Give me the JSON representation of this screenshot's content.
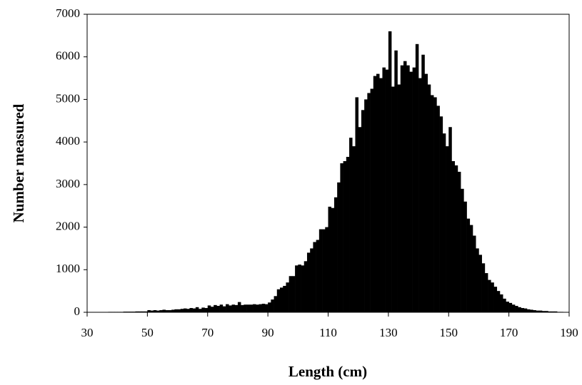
{
  "chart_data": {
    "type": "histogram",
    "xlabel": "Length (cm)",
    "ylabel": "Number measured",
    "bins": [
      30,
      31,
      32,
      33,
      34,
      35,
      36,
      37,
      38,
      39,
      40,
      41,
      42,
      43,
      44,
      45,
      46,
      47,
      48,
      49,
      50,
      51,
      52,
      53,
      54,
      55,
      56,
      57,
      58,
      59,
      60,
      61,
      62,
      63,
      64,
      65,
      66,
      67,
      68,
      69,
      70,
      71,
      72,
      73,
      74,
      75,
      76,
      77,
      78,
      79,
      80,
      81,
      82,
      83,
      84,
      85,
      86,
      87,
      88,
      89,
      90,
      91,
      92,
      93,
      94,
      95,
      96,
      97,
      98,
      99,
      100,
      101,
      102,
      103,
      104,
      105,
      106,
      107,
      108,
      109,
      110,
      111,
      112,
      113,
      114,
      115,
      116,
      117,
      118,
      119,
      120,
      121,
      122,
      123,
      124,
      125,
      126,
      127,
      128,
      129,
      130,
      131,
      132,
      133,
      134,
      135,
      136,
      137,
      138,
      139,
      140,
      141,
      142,
      143,
      144,
      145,
      146,
      147,
      148,
      149,
      150,
      151,
      152,
      153,
      154,
      155,
      156,
      157,
      158,
      159,
      160,
      161,
      162,
      163,
      164,
      165,
      166,
      167,
      168,
      169,
      170,
      171,
      172,
      173,
      174,
      175,
      176,
      177,
      178,
      179,
      180,
      181,
      182,
      183,
      184,
      185,
      186,
      187,
      188,
      189,
      190
    ],
    "counts": [
      5,
      5,
      5,
      5,
      5,
      5,
      5,
      10,
      10,
      10,
      10,
      10,
      15,
      15,
      15,
      15,
      20,
      20,
      20,
      20,
      50,
      40,
      50,
      40,
      50,
      60,
      50,
      50,
      60,
      70,
      70,
      80,
      90,
      80,
      100,
      90,
      120,
      80,
      110,
      100,
      160,
      130,
      170,
      150,
      180,
      140,
      190,
      160,
      180,
      170,
      240,
      170,
      180,
      180,
      180,
      190,
      180,
      190,
      200,
      190,
      230,
      300,
      380,
      540,
      580,
      620,
      700,
      850,
      850,
      1100,
      1120,
      1100,
      1200,
      1400,
      1500,
      1650,
      1700,
      1950,
      1950,
      2000,
      2480,
      2450,
      2700,
      3050,
      3500,
      3550,
      3650,
      4100,
      3900,
      5050,
      4350,
      4750,
      5000,
      5150,
      5250,
      5550,
      5600,
      5500,
      5750,
      5700,
      6600,
      5300,
      6150,
      5350,
      5800,
      5900,
      5800,
      5650,
      5750,
      6300,
      5500,
      6050,
      5600,
      5350,
      5100,
      5050,
      4850,
      4600,
      4200,
      3900,
      4350,
      3550,
      3450,
      3300,
      2900,
      2600,
      2200,
      2050,
      1800,
      1500,
      1350,
      1150,
      920,
      760,
      700,
      600,
      500,
      420,
      320,
      250,
      220,
      180,
      150,
      120,
      100,
      90,
      70,
      60,
      50,
      40,
      40,
      30,
      30,
      20,
      20,
      20,
      10,
      10,
      5,
      5
    ],
    "color": "#000000",
    "xlim": [
      30,
      190
    ],
    "xticks": [
      30,
      50,
      70,
      90,
      110,
      130,
      150,
      170,
      190
    ],
    "ylim": [
      0,
      7000
    ],
    "yticks": [
      0,
      1000,
      2000,
      3000,
      4000,
      5000,
      6000,
      7000
    ]
  }
}
